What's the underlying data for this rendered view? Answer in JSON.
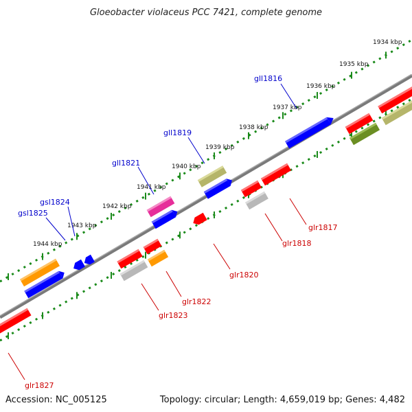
{
  "title": "Gloeobacter violaceus PCC 7421, complete genome",
  "accession": "Accession: NC_005125",
  "topology": "Topology: circular; Length: 4,659,019 bp; Genes: 4,482",
  "colors": {
    "backbone": "#808080",
    "tick_ring": "#1a8a1a",
    "forward_label": "#0000cc",
    "reverse_label": "#cc0000",
    "red": "#ff0000",
    "blue": "#0000ff",
    "orange": "#ff9900",
    "olive": "#b5b56a",
    "dark_olive": "#6b8e23",
    "magenta": "#e62e9a",
    "grey": "#b8b8b8"
  },
  "scale_labels": [
    "1934 kbp",
    "1935 kbp",
    "1936 kbp",
    "1937 kbp",
    "1938 kbp",
    "1939 kbp",
    "1940 kbp",
    "1941 kbp",
    "1942 kbp",
    "1943 kbp",
    "1944 kbp"
  ],
  "forward_genes": [
    "gll1816",
    "gll1819",
    "gll1821",
    "gsl1824",
    "gsl1825"
  ],
  "reverse_genes": [
    "glr1817",
    "glr1818",
    "glr1820",
    "glr1822",
    "glr1823",
    "glr1827"
  ]
}
